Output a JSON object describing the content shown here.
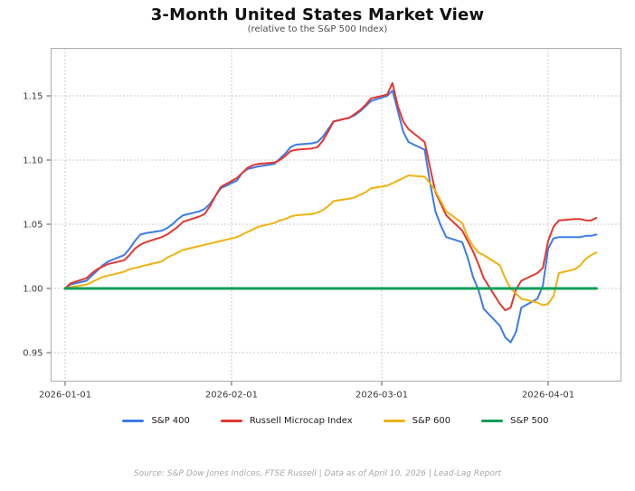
{
  "header": {
    "title": "3-Month United States Market View",
    "subtitle": "(relative to the S&P 500 Index)"
  },
  "chart_data": {
    "type": "line",
    "title": "3-Month United States Market View",
    "subtitle": "(relative to the S&P 500 Index)",
    "xlabel": "",
    "ylabel": "",
    "grid": true,
    "legend_position": "bottom",
    "ylim": [
      0.928,
      1.187
    ],
    "yticks": [
      0.95,
      1.0,
      1.05,
      1.1,
      1.15
    ],
    "ytick_labels": [
      "0.95",
      "1.00",
      "1.05",
      "1.10",
      "1.15"
    ],
    "xticks": [
      "2026-01-01",
      "2026-02-01",
      "2026-03-01",
      "2026-04-01"
    ],
    "x_dates": [
      "2026-01-01",
      "2026-01-02",
      "2026-01-05",
      "2026-01-06",
      "2026-01-07",
      "2026-01-08",
      "2026-01-09",
      "2026-01-12",
      "2026-01-13",
      "2026-01-14",
      "2026-01-15",
      "2026-01-16",
      "2026-01-19",
      "2026-01-20",
      "2026-01-21",
      "2026-01-22",
      "2026-01-23",
      "2026-01-26",
      "2026-01-27",
      "2026-01-28",
      "2026-01-29",
      "2026-01-30",
      "2026-02-02",
      "2026-02-03",
      "2026-02-04",
      "2026-02-05",
      "2026-02-06",
      "2026-02-09",
      "2026-02-10",
      "2026-02-11",
      "2026-02-12",
      "2026-02-13",
      "2026-02-16",
      "2026-02-17",
      "2026-02-18",
      "2026-02-19",
      "2026-02-20",
      "2026-02-23",
      "2026-02-24",
      "2026-02-25",
      "2026-02-26",
      "2026-02-27",
      "2026-03-02",
      "2026-03-03",
      "2026-03-04",
      "2026-03-05",
      "2026-03-06",
      "2026-03-09",
      "2026-03-10",
      "2026-03-11",
      "2026-03-12",
      "2026-03-13",
      "2026-03-16",
      "2026-03-17",
      "2026-03-18",
      "2026-03-19",
      "2026-03-20",
      "2026-03-23",
      "2026-03-24",
      "2026-03-25",
      "2026-03-26",
      "2026-03-27",
      "2026-03-30",
      "2026-03-31",
      "2026-04-01",
      "2026-04-02",
      "2026-04-03",
      "2026-04-06",
      "2026-04-07",
      "2026-04-08",
      "2026-04-09",
      "2026-04-10"
    ],
    "series": [
      {
        "name": "S&P 400",
        "color": "#3E7BE6",
        "width": 2,
        "values": [
          1.0,
          1.003,
          1.006,
          1.01,
          1.014,
          1.018,
          1.021,
          1.026,
          1.031,
          1.037,
          1.042,
          1.043,
          1.045,
          1.047,
          1.05,
          1.054,
          1.057,
          1.06,
          1.062,
          1.066,
          1.072,
          1.078,
          1.084,
          1.09,
          1.093,
          1.094,
          1.095,
          1.097,
          1.101,
          1.105,
          1.11,
          1.112,
          1.113,
          1.114,
          1.118,
          1.124,
          1.13,
          1.133,
          1.135,
          1.138,
          1.142,
          1.146,
          1.15,
          1.154,
          1.138,
          1.122,
          1.114,
          1.108,
          1.082,
          1.06,
          1.049,
          1.04,
          1.036,
          1.024,
          1.009,
          0.999,
          0.984,
          0.971,
          0.962,
          0.958,
          0.966,
          0.985,
          0.992,
          1.002,
          1.031,
          1.039,
          1.04,
          1.04,
          1.04,
          1.041,
          1.041,
          1.042
        ]
      },
      {
        "name": "Russell Microcap Index",
        "color": "#E43730",
        "width": 2,
        "values": [
          1.0,
          1.004,
          1.008,
          1.012,
          1.015,
          1.017,
          1.019,
          1.022,
          1.026,
          1.031,
          1.034,
          1.036,
          1.04,
          1.042,
          1.045,
          1.048,
          1.052,
          1.056,
          1.058,
          1.064,
          1.072,
          1.079,
          1.086,
          1.09,
          1.094,
          1.096,
          1.097,
          1.098,
          1.1,
          1.103,
          1.107,
          1.108,
          1.109,
          1.11,
          1.115,
          1.122,
          1.13,
          1.133,
          1.136,
          1.139,
          1.143,
          1.148,
          1.151,
          1.16,
          1.142,
          1.13,
          1.124,
          1.114,
          1.094,
          1.075,
          1.066,
          1.057,
          1.045,
          1.037,
          1.029,
          1.019,
          1.008,
          0.988,
          0.983,
          0.985,
          0.999,
          1.006,
          1.012,
          1.016,
          1.037,
          1.048,
          1.053,
          1.054,
          1.054,
          1.053,
          1.053,
          1.055
        ]
      },
      {
        "name": "S&P 600",
        "color": "#EFB211",
        "width": 2,
        "values": [
          1.0,
          1.001,
          1.003,
          1.005,
          1.007,
          1.009,
          1.01,
          1.013,
          1.015,
          1.016,
          1.017,
          1.018,
          1.021,
          1.024,
          1.026,
          1.028,
          1.03,
          1.033,
          1.034,
          1.035,
          1.036,
          1.037,
          1.04,
          1.042,
          1.044,
          1.046,
          1.048,
          1.051,
          1.053,
          1.054,
          1.056,
          1.057,
          1.058,
          1.059,
          1.061,
          1.064,
          1.068,
          1.07,
          1.071,
          1.073,
          1.075,
          1.078,
          1.08,
          1.082,
          1.084,
          1.086,
          1.088,
          1.087,
          1.082,
          1.076,
          1.068,
          1.06,
          1.051,
          1.04,
          1.033,
          1.028,
          1.026,
          1.018,
          1.008,
          1.0,
          0.996,
          0.992,
          0.989,
          0.987,
          0.988,
          0.994,
          1.012,
          1.015,
          1.018,
          1.023,
          1.026,
          1.028
        ]
      },
      {
        "name": "S&P 500",
        "color": "#0F9D58",
        "width": 3,
        "values": [
          1.0,
          1.0,
          1.0,
          1.0,
          1.0,
          1.0,
          1.0,
          1.0,
          1.0,
          1.0,
          1.0,
          1.0,
          1.0,
          1.0,
          1.0,
          1.0,
          1.0,
          1.0,
          1.0,
          1.0,
          1.0,
          1.0,
          1.0,
          1.0,
          1.0,
          1.0,
          1.0,
          1.0,
          1.0,
          1.0,
          1.0,
          1.0,
          1.0,
          1.0,
          1.0,
          1.0,
          1.0,
          1.0,
          1.0,
          1.0,
          1.0,
          1.0,
          1.0,
          1.0,
          1.0,
          1.0,
          1.0,
          1.0,
          1.0,
          1.0,
          1.0,
          1.0,
          1.0,
          1.0,
          1.0,
          1.0,
          1.0,
          1.0,
          1.0,
          1.0,
          1.0,
          1.0,
          1.0,
          1.0,
          1.0,
          1.0,
          1.0,
          1.0,
          1.0,
          1.0,
          1.0,
          1.0
        ]
      }
    ]
  },
  "footer": {
    "text": "Source: S&P Dow Jones Indices, FTSE Russell  |  Data as of April 10, 2026  |  Lead-Lag Report"
  }
}
